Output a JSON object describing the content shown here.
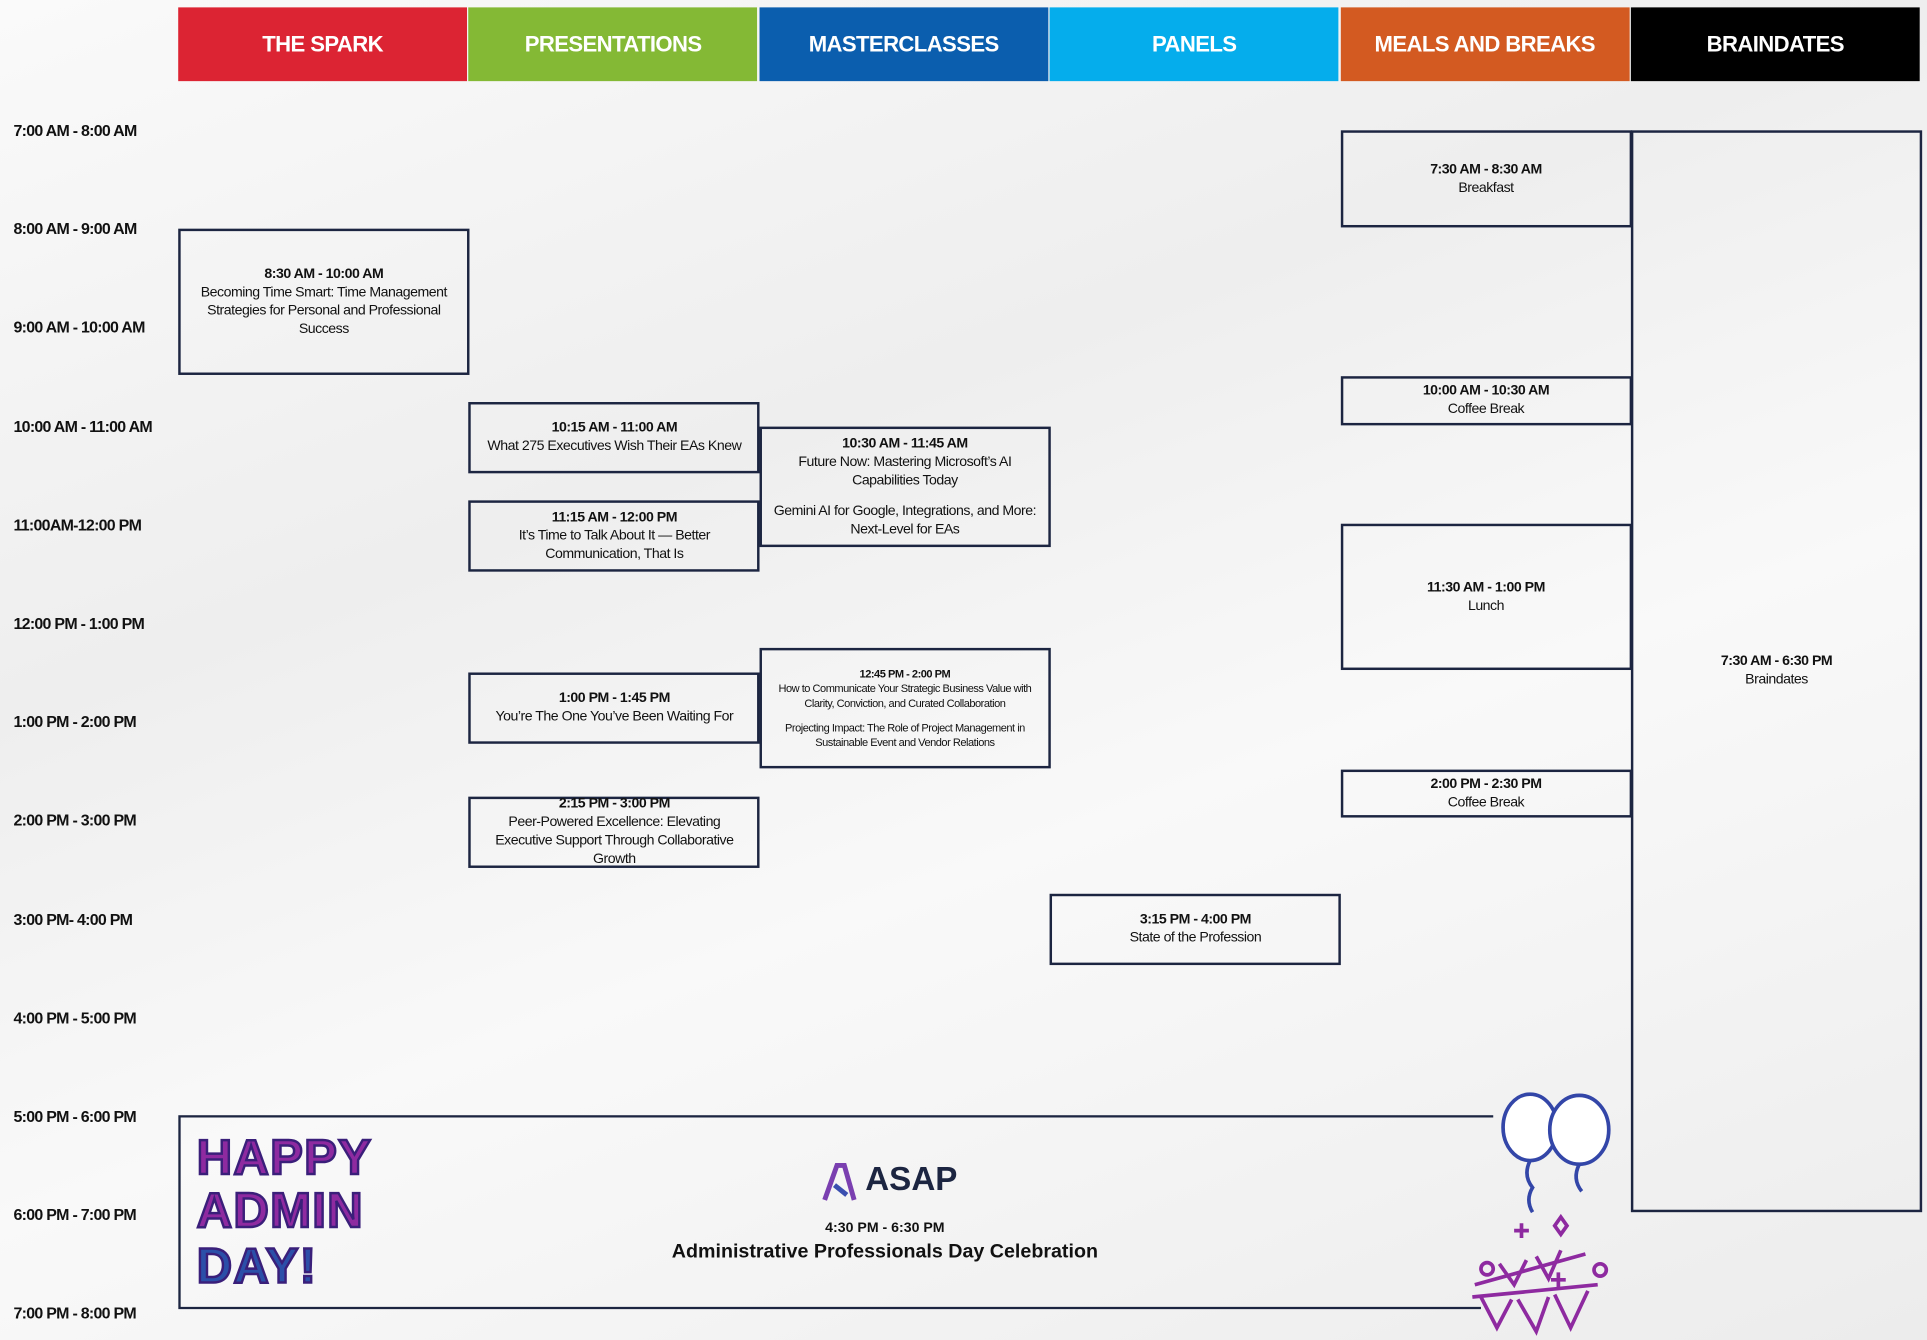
{
  "columns": [
    {
      "name": "THE SPARK",
      "sessions": [
        {
          "time": "8:30 AM - 10:00 AM",
          "titles": [
            "Becoming Time Smart: Time Management Strategies for Personal and Professional Success"
          ]
        }
      ]
    },
    {
      "name": "PRESENTATIONS",
      "sessions": [
        {
          "time": "10:15 AM - 11:00 AM",
          "titles": [
            "What 275 Executives Wish Their EAs Knew"
          ]
        },
        {
          "time": "11:15 AM - 12:00 PM",
          "titles": [
            "It’s Time to Talk About It — Better Communication, That Is"
          ]
        },
        {
          "time": "1:00 PM - 1:45 PM",
          "titles": [
            "You’re The One You’ve Been Waiting For"
          ]
        },
        {
          "time": "2:15 PM - 3:00 PM",
          "titles": [
            "Peer-Powered Excellence: Elevating Executive Support Through Collaborative Growth"
          ]
        }
      ]
    },
    {
      "name": "MASTERCLASSES",
      "sessions": [
        {
          "time": "10:30 AM - 11:45 AM",
          "titles": [
            "Future Now: Mastering Microsoft’s AI Capabilities Today",
            "Gemini AI for Google, Integrations, and More: Next-Level for EAs"
          ]
        },
        {
          "time": "12:45 PM - 2:00 PM",
          "titles": [
            "How to Communicate Your Strategic Business Value with Clarity, Conviction, and Curated Collaboration",
            "Projecting Impact: The Role of Project Management in Sustainable Event and Vendor Relations"
          ]
        }
      ]
    },
    {
      "name": "PANELS",
      "sessions": [
        {
          "time": "3:15 PM - 4:00 PM",
          "titles": [
            "State of the Profession"
          ]
        }
      ]
    },
    {
      "name": "MEALS AND BREAKS",
      "sessions": [
        {
          "time": "7:30 AM - 8:30 AM",
          "titles": [
            "Breakfast"
          ]
        },
        {
          "time": "10:00 AM - 10:30 AM",
          "titles": [
            "Coffee Break"
          ]
        },
        {
          "time": "11:30 AM - 1:00 PM",
          "titles": [
            "Lunch"
          ]
        },
        {
          "time": "2:00 PM - 2:30 PM",
          "titles": [
            "Coffee Break"
          ]
        }
      ]
    },
    {
      "name": "BRAINDATES",
      "sessions": [
        {
          "time": "7:30 AM - 6:30 PM",
          "titles": [
            "Braindates"
          ]
        }
      ]
    }
  ],
  "time_slots": [
    "7:00 AM - 8:00 AM",
    "8:00 AM - 9:00 AM",
    "9:00 AM - 10:00 AM",
    "10:00 AM - 11:00 AM",
    "11:00AM-12:00 PM",
    "12:00 PM - 1:00 PM",
    "1:00 PM - 2:00 PM",
    "2:00 PM - 3:00 PM",
    "3:00 PM- 4:00 PM",
    "4:00 PM - 5:00 PM",
    "5:00 PM - 6:00 PM",
    "6:00 PM - 7:00 PM",
    "7:00 PM - 8:00 PM"
  ],
  "celebration": {
    "badge": [
      "HAPPY",
      "ADMIN",
      "DAY!"
    ],
    "logo": "ASAP",
    "time": "4:30 PM - 6:30 PM",
    "title": "Administrative Professionals Day Celebration"
  }
}
